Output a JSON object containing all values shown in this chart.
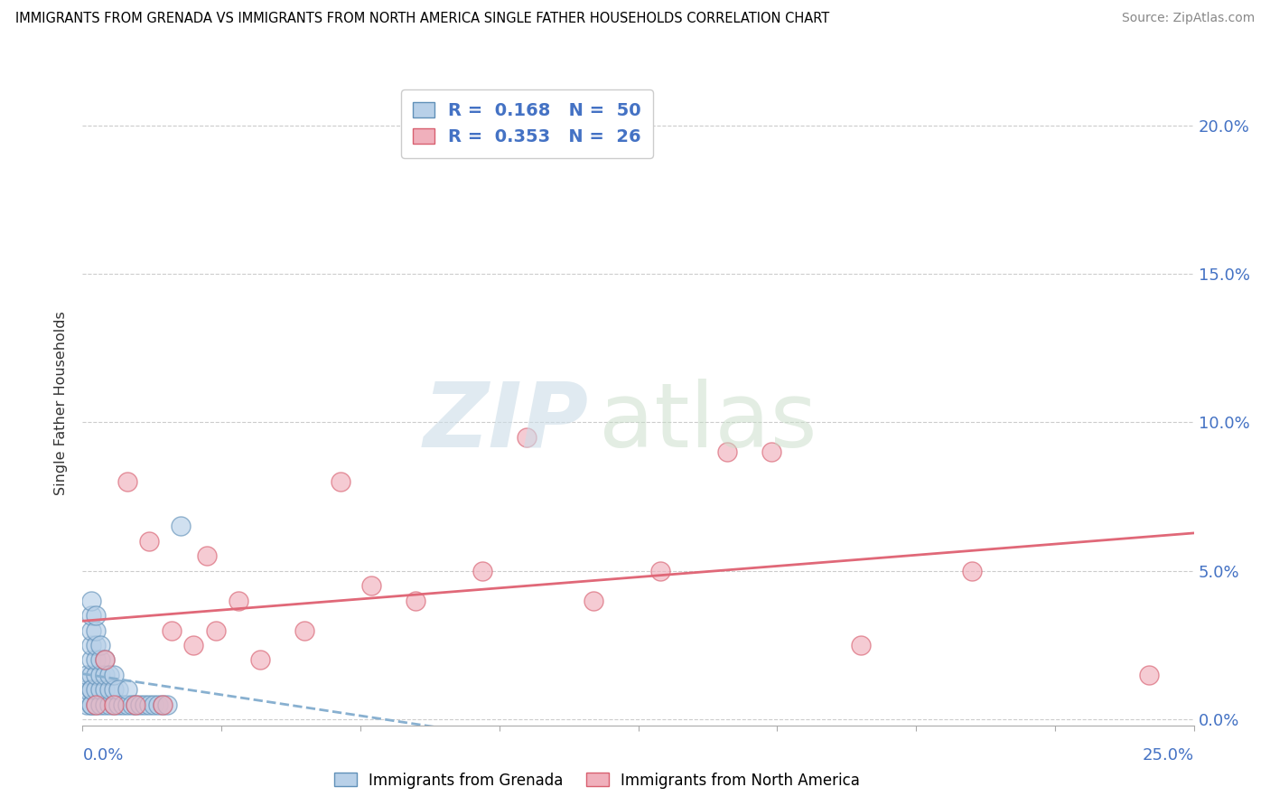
{
  "title": "IMMIGRANTS FROM GRENADA VS IMMIGRANTS FROM NORTH AMERICA SINGLE FATHER HOUSEHOLDS CORRELATION CHART",
  "source": "Source: ZipAtlas.com",
  "ylabel": "Single Father Households",
  "xlim": [
    0.0,
    0.25
  ],
  "ylim": [
    -0.002,
    0.215
  ],
  "ytick_vals": [
    0.0,
    0.05,
    0.1,
    0.15,
    0.2
  ],
  "ytick_labels": [
    "0.0%",
    "5.0%",
    "10.0%",
    "15.0%",
    "20.0%"
  ],
  "legend1_R": "0.168",
  "legend1_N": "50",
  "legend2_R": "0.353",
  "legend2_N": "26",
  "color_blue_fill": "#b8d0e8",
  "color_blue_edge": "#6090b8",
  "color_pink_fill": "#f0b0bc",
  "color_pink_edge": "#d86070",
  "color_blue_line": "#88b0d0",
  "color_pink_line": "#e06878",
  "blue_x": [
    0.001,
    0.001,
    0.001,
    0.002,
    0.002,
    0.002,
    0.002,
    0.002,
    0.002,
    0.002,
    0.002,
    0.002,
    0.002,
    0.003,
    0.003,
    0.003,
    0.003,
    0.003,
    0.003,
    0.003,
    0.004,
    0.004,
    0.004,
    0.004,
    0.004,
    0.005,
    0.005,
    0.005,
    0.005,
    0.006,
    0.006,
    0.006,
    0.007,
    0.007,
    0.007,
    0.008,
    0.008,
    0.009,
    0.01,
    0.01,
    0.011,
    0.012,
    0.013,
    0.014,
    0.015,
    0.016,
    0.017,
    0.018,
    0.019,
    0.022
  ],
  "blue_y": [
    0.005,
    0.01,
    0.015,
    0.005,
    0.01,
    0.015,
    0.02,
    0.025,
    0.03,
    0.035,
    0.04,
    0.005,
    0.01,
    0.005,
    0.01,
    0.015,
    0.02,
    0.025,
    0.03,
    0.035,
    0.005,
    0.01,
    0.015,
    0.02,
    0.025,
    0.005,
    0.01,
    0.015,
    0.02,
    0.005,
    0.01,
    0.015,
    0.005,
    0.01,
    0.015,
    0.005,
    0.01,
    0.005,
    0.005,
    0.01,
    0.005,
    0.005,
    0.005,
    0.005,
    0.005,
    0.005,
    0.005,
    0.005,
    0.005,
    0.065
  ],
  "pink_x": [
    0.003,
    0.005,
    0.007,
    0.01,
    0.012,
    0.015,
    0.018,
    0.02,
    0.025,
    0.028,
    0.03,
    0.035,
    0.04,
    0.05,
    0.058,
    0.065,
    0.075,
    0.09,
    0.1,
    0.115,
    0.13,
    0.145,
    0.155,
    0.175,
    0.2,
    0.24
  ],
  "pink_y": [
    0.005,
    0.02,
    0.005,
    0.08,
    0.005,
    0.06,
    0.005,
    0.03,
    0.025,
    0.055,
    0.03,
    0.04,
    0.02,
    0.03,
    0.08,
    0.045,
    0.04,
    0.05,
    0.095,
    0.04,
    0.05,
    0.09,
    0.09,
    0.025,
    0.05,
    0.015
  ]
}
